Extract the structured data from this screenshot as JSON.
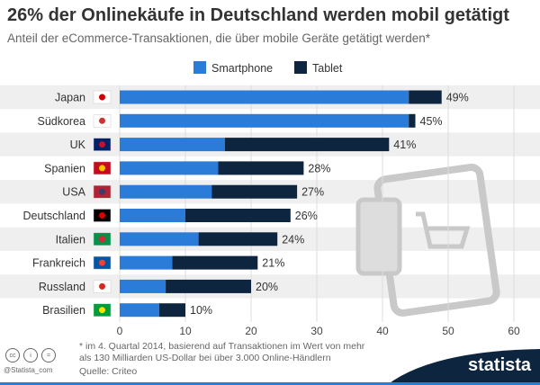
{
  "chart_data": {
    "type": "bar",
    "orientation": "horizontal",
    "stacked": true,
    "title": "26% der Onlinekäufe in Deutschland werden mobil getätigt",
    "subtitle": "Anteil der eCommerce-Transaktionen, die über mobile Geräte getätigt werden*",
    "categories": [
      "Japan",
      "Südkorea",
      "UK",
      "Spanien",
      "USA",
      "Deutschland",
      "Italien",
      "Frankreich",
      "Russland",
      "Brasilien"
    ],
    "flags": [
      "jp",
      "kr",
      "gb",
      "es",
      "us",
      "de",
      "it",
      "fr",
      "ru",
      "br"
    ],
    "series": [
      {
        "name": "Smartphone",
        "color": "#2b7bd9",
        "values": [
          44,
          44,
          16,
          15,
          14,
          10,
          12,
          8,
          7,
          6
        ]
      },
      {
        "name": "Tablet",
        "color": "#0e2540",
        "values": [
          5,
          1,
          25,
          13,
          13,
          16,
          12,
          13,
          13,
          4
        ]
      }
    ],
    "totals": [
      "49%",
      "45%",
      "41%",
      "28%",
      "27%",
      "26%",
      "24%",
      "21%",
      "20%",
      "10%"
    ],
    "xlim": [
      0,
      60
    ],
    "xticks": [
      "0",
      "10",
      "20",
      "30",
      "40",
      "50",
      "60"
    ],
    "grid": true,
    "legend": "top"
  },
  "footer": {
    "note": "* im 4. Quartal 2014, basierend auf Transaktionen im Wert von mehr als 130 Milliarden US-Dollar bei über 3.000 Online-Händlern",
    "source": "Quelle: Criteo",
    "handle": "@Statista_com",
    "logo": "statista"
  }
}
